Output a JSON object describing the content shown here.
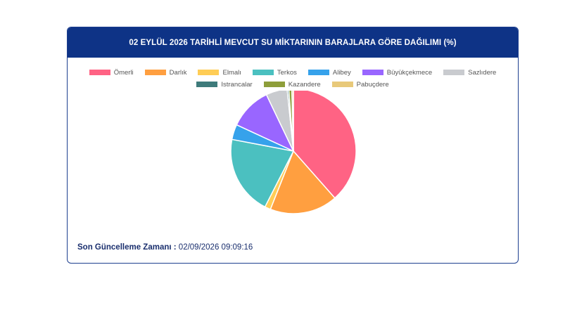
{
  "header": {
    "title": "02 EYLÜL 2026 TARİHLİ MEVCUT SU MİKTARININ BARAJLARA GÖRE DAĞILIMI (%)"
  },
  "footer": {
    "label": "Son Güncelleme Zamanı :",
    "value": "02/09/2026 09:09:16"
  },
  "chart_data": {
    "type": "pie",
    "title": "02 EYLÜL 2026 TARİHLİ MEVCUT SU MİKTARININ BARAJLARA GÖRE DAĞILIMI (%)",
    "legend_position": "top",
    "categories": [
      "Ömerli",
      "Darlık",
      "Elmalı",
      "Terkos",
      "Alibey",
      "Büyükçekmece",
      "Sazlıdere",
      "Istrancalar",
      "Kazandere",
      "Pabuçdere"
    ],
    "values": [
      38.5,
      17.5,
      1.5,
      20.5,
      3.9,
      11.0,
      5.5,
      0.4,
      0.8,
      0.4
    ],
    "colors": [
      "#ff6384",
      "#ff9f40",
      "#ffcd56",
      "#4bc0c0",
      "#36a2eb",
      "#9966ff",
      "#c9cbcf",
      "#3e7b7b",
      "#8e9e3a",
      "#e8c97a"
    ]
  }
}
